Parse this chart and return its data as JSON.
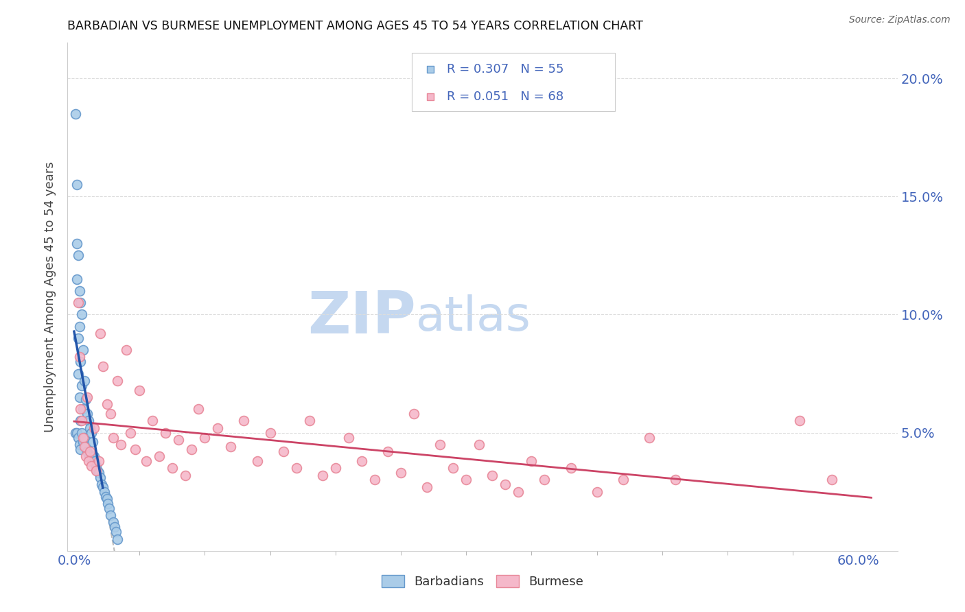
{
  "title": "BARBADIAN VS BURMESE UNEMPLOYMENT AMONG AGES 45 TO 54 YEARS CORRELATION CHART",
  "source": "Source: ZipAtlas.com",
  "ylabel": "Unemployment Among Ages 45 to 54 years",
  "ylim": [
    0.0,
    0.215
  ],
  "xlim": [
    -0.005,
    0.63
  ],
  "barbadian_color": "#aacce8",
  "burmese_color": "#f5b8ca",
  "barbadian_edge": "#6699cc",
  "burmese_edge": "#e88899",
  "trend_barbadian_color": "#2255aa",
  "trend_burmese_color": "#cc4466",
  "dashed_line_color": "#bbbbbb",
  "watermark_zip_color": "#c5d8f0",
  "watermark_atlas_color": "#c5d8f0",
  "title_color": "#111111",
  "source_color": "#666666",
  "tick_label_color": "#4466bb",
  "ylabel_color": "#444444",
  "grid_color": "#dddddd",
  "barbadian_x": [
    0.001,
    0.001,
    0.002,
    0.002,
    0.002,
    0.002,
    0.003,
    0.003,
    0.003,
    0.003,
    0.004,
    0.004,
    0.004,
    0.004,
    0.005,
    0.005,
    0.005,
    0.005,
    0.006,
    0.006,
    0.006,
    0.007,
    0.007,
    0.007,
    0.008,
    0.008,
    0.009,
    0.009,
    0.01,
    0.01,
    0.011,
    0.011,
    0.012,
    0.012,
    0.013,
    0.013,
    0.014,
    0.015,
    0.016,
    0.017,
    0.018,
    0.019,
    0.02,
    0.021,
    0.022,
    0.023,
    0.024,
    0.025,
    0.026,
    0.027,
    0.028,
    0.03,
    0.031,
    0.032,
    0.033
  ],
  "barbadian_y": [
    0.185,
    0.05,
    0.155,
    0.13,
    0.115,
    0.05,
    0.125,
    0.09,
    0.075,
    0.048,
    0.11,
    0.095,
    0.065,
    0.045,
    0.105,
    0.08,
    0.055,
    0.043,
    0.1,
    0.07,
    0.05,
    0.085,
    0.06,
    0.046,
    0.072,
    0.048,
    0.064,
    0.044,
    0.058,
    0.042,
    0.055,
    0.041,
    0.052,
    0.04,
    0.05,
    0.039,
    0.046,
    0.04,
    0.038,
    0.036,
    0.034,
    0.033,
    0.031,
    0.028,
    0.027,
    0.025,
    0.023,
    0.022,
    0.02,
    0.018,
    0.015,
    0.012,
    0.01,
    0.008,
    0.005
  ],
  "burmese_x": [
    0.003,
    0.004,
    0.005,
    0.006,
    0.007,
    0.008,
    0.009,
    0.01,
    0.011,
    0.012,
    0.013,
    0.015,
    0.017,
    0.019,
    0.02,
    0.022,
    0.025,
    0.028,
    0.03,
    0.033,
    0.036,
    0.04,
    0.043,
    0.047,
    0.05,
    0.055,
    0.06,
    0.065,
    0.07,
    0.075,
    0.08,
    0.085,
    0.09,
    0.095,
    0.1,
    0.11,
    0.12,
    0.13,
    0.14,
    0.15,
    0.16,
    0.17,
    0.18,
    0.19,
    0.2,
    0.21,
    0.22,
    0.23,
    0.24,
    0.25,
    0.26,
    0.27,
    0.28,
    0.29,
    0.3,
    0.31,
    0.32,
    0.33,
    0.34,
    0.35,
    0.36,
    0.38,
    0.4,
    0.42,
    0.44,
    0.46,
    0.555,
    0.58
  ],
  "burmese_y": [
    0.105,
    0.082,
    0.06,
    0.055,
    0.048,
    0.044,
    0.04,
    0.065,
    0.038,
    0.042,
    0.036,
    0.052,
    0.034,
    0.038,
    0.092,
    0.078,
    0.062,
    0.058,
    0.048,
    0.072,
    0.045,
    0.085,
    0.05,
    0.043,
    0.068,
    0.038,
    0.055,
    0.04,
    0.05,
    0.035,
    0.047,
    0.032,
    0.043,
    0.06,
    0.048,
    0.052,
    0.044,
    0.055,
    0.038,
    0.05,
    0.042,
    0.035,
    0.055,
    0.032,
    0.035,
    0.048,
    0.038,
    0.03,
    0.042,
    0.033,
    0.058,
    0.027,
    0.045,
    0.035,
    0.03,
    0.045,
    0.032,
    0.028,
    0.025,
    0.038,
    0.03,
    0.035,
    0.025,
    0.03,
    0.048,
    0.03,
    0.055,
    0.03
  ]
}
